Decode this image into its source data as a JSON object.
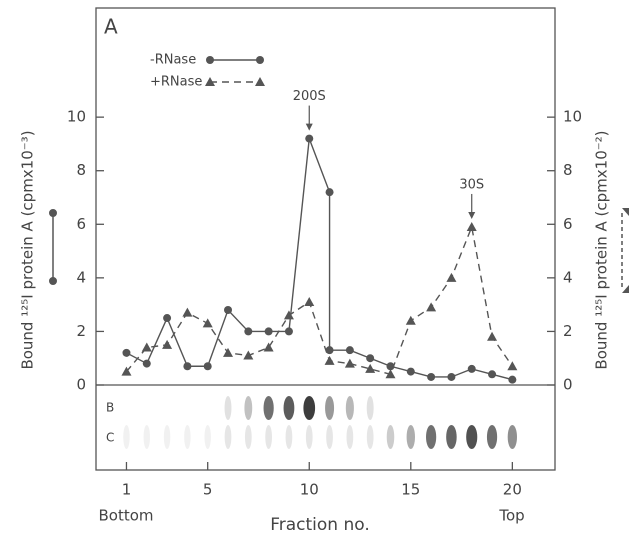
{
  "chart_data": {
    "type": "line",
    "panel_label": "A",
    "y_label": "Bound ¹²⁵I protein A (cpmx10⁻³)",
    "y2_label": "Bound ¹²⁵I protein A (cpmx10⁻²)",
    "x_label": "Fraction no.",
    "x_start_label": "Bottom",
    "x_end_label": "Top",
    "gel_labels": [
      "B",
      "C"
    ],
    "annotations": [
      {
        "text": "200S",
        "x": 10,
        "y": 9.2
      },
      {
        "text": "30S",
        "x": 18,
        "y": 5.9
      }
    ],
    "xlim": [
      -0.5,
      22.1
    ],
    "xticks": [
      1,
      5,
      10,
      15,
      20
    ],
    "ylim": [
      0,
      14
    ],
    "yticks": [
      0,
      2,
      4,
      6,
      8,
      10
    ],
    "y2lim": [
      0,
      14
    ],
    "y2ticks": [
      0,
      2,
      4,
      6,
      8,
      10
    ],
    "series": [
      {
        "name": "-RNase",
        "color": "#555",
        "marker": "circle",
        "dash": false,
        "x": [
          1,
          2,
          3,
          4,
          5,
          6,
          7,
          8,
          9,
          10,
          11,
          11,
          12,
          13,
          14,
          15,
          16,
          17,
          18,
          19,
          20
        ],
        "values": [
          1.2,
          0.8,
          2.5,
          0.7,
          0.7,
          2.8,
          2.0,
          2.0,
          2.0,
          9.2,
          7.2,
          1.3,
          1.3,
          1.0,
          0.7,
          0.5,
          0.3,
          0.3,
          0.6,
          0.4,
          0.2
        ]
      },
      {
        "name": "+RNase",
        "color": "#555",
        "marker": "triangle",
        "dash": true,
        "axis": "y2",
        "x": [
          1,
          2,
          3,
          4,
          5,
          6,
          7,
          8,
          9,
          10,
          11,
          12,
          13,
          14,
          15,
          16,
          17,
          18,
          19,
          20
        ],
        "values": [
          0.5,
          1.4,
          1.5,
          2.7,
          2.3,
          1.2,
          1.1,
          1.4,
          2.6,
          3.1,
          0.9,
          0.8,
          0.6,
          0.4,
          2.4,
          2.9,
          4.0,
          5.9,
          1.8,
          0.7
        ]
      }
    ]
  }
}
